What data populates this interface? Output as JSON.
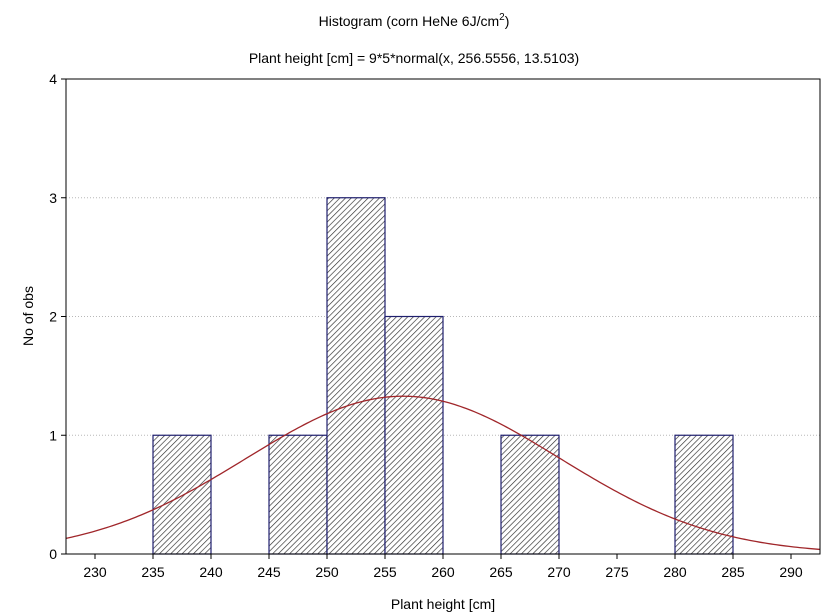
{
  "chart_data": {
    "type": "bar",
    "title_main": "Histogram (corn HeNe 6J/cm",
    "title_sup": "2",
    "title_end": ")",
    "subtitle": "Plant height [cm] = 9*5*normal(x, 256.5556, 13.5103)",
    "xlabel": "Plant height [cm]",
    "ylabel": "No of obs",
    "xlim": [
      227.5,
      292.5
    ],
    "ylim": [
      0,
      4
    ],
    "x_ticks": [
      "230",
      "235",
      "240",
      "245",
      "250",
      "255",
      "260",
      "265",
      "270",
      "275",
      "280",
      "285",
      "290"
    ],
    "y_ticks": [
      "0",
      "1",
      "2",
      "3",
      "4"
    ],
    "grid": true,
    "bins": [
      {
        "from": 235,
        "to": 240,
        "count": 1
      },
      {
        "from": 245,
        "to": 250,
        "count": 1
      },
      {
        "from": 250,
        "to": 255,
        "count": 3
      },
      {
        "from": 255,
        "to": 260,
        "count": 2
      },
      {
        "from": 265,
        "to": 270,
        "count": 1
      },
      {
        "from": 280,
        "to": 285,
        "count": 1
      }
    ],
    "normal_curve": {
      "n": 9,
      "bin_width": 5,
      "mean": 256.5556,
      "sd": 13.5103
    },
    "colors": {
      "bar_edge": "#1f1f6e",
      "hatch": "#2a2a2a",
      "curve": "#a0262a",
      "grid": "#b8b8b8"
    }
  }
}
